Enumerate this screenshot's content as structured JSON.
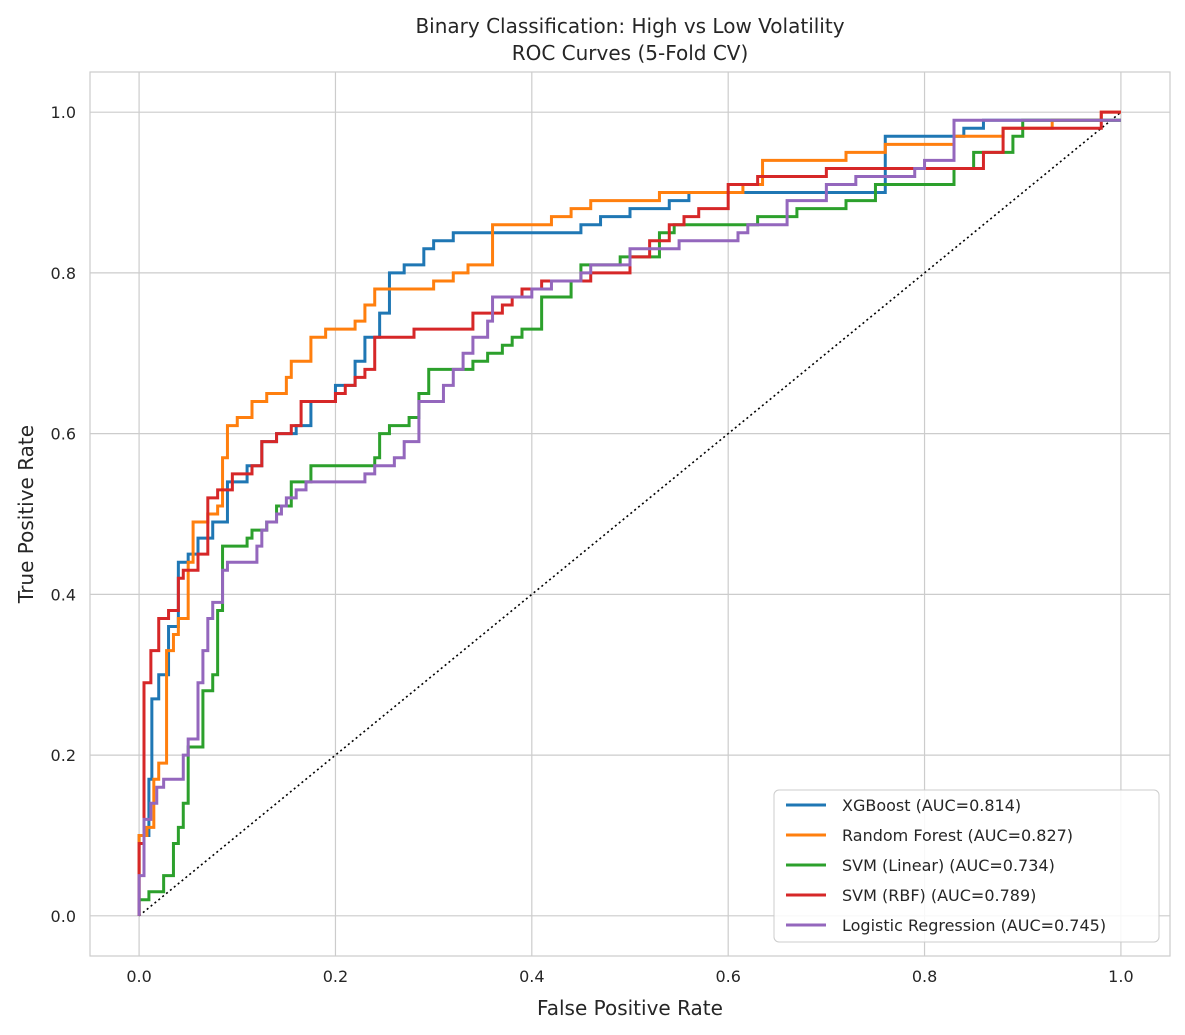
{
  "chart_data": {
    "type": "line",
    "title": "Binary Classification: High vs Low Volatility",
    "subtitle": "ROC Curves (5-Fold CV)",
    "xlabel": "False Positive Rate",
    "ylabel": "True Positive Rate",
    "xlim": [
      -0.05,
      1.05
    ],
    "ylim": [
      -0.05,
      1.05
    ],
    "xticks": [
      "0.0",
      "0.2",
      "0.4",
      "0.6",
      "0.8",
      "1.0"
    ],
    "yticks": [
      "0.0",
      "0.2",
      "0.4",
      "0.6",
      "0.8",
      "1.0"
    ],
    "grid": true,
    "legend_position": "lower-right",
    "diagonal": {
      "x": [
        0,
        1
      ],
      "y": [
        0,
        1
      ],
      "color": "#000000",
      "style": "dotted"
    },
    "series": [
      {
        "name": "XGBoost (AUC=0.814)",
        "color": "#1f77b4",
        "x": [
          0,
          0,
          0.01,
          0.01,
          0.013,
          0.013,
          0.02,
          0.02,
          0.03,
          0.03,
          0.04,
          0.04,
          0.05,
          0.05,
          0.06,
          0.06,
          0.075,
          0.075,
          0.09,
          0.09,
          0.11,
          0.11,
          0.125,
          0.125,
          0.14,
          0.14,
          0.16,
          0.16,
          0.175,
          0.175,
          0.2,
          0.2,
          0.22,
          0.22,
          0.23,
          0.23,
          0.245,
          0.245,
          0.255,
          0.255,
          0.27,
          0.27,
          0.29,
          0.29,
          0.3,
          0.3,
          0.32,
          0.32,
          0.45,
          0.45,
          0.47,
          0.47,
          0.5,
          0.5,
          0.54,
          0.54,
          0.56,
          0.56,
          0.64,
          0.64,
          0.7,
          0.7,
          0.76,
          0.76,
          0.84,
          0.84,
          0.86,
          0.86,
          1.0
        ],
        "y": [
          0,
          0.1,
          0.1,
          0.17,
          0.17,
          0.27,
          0.27,
          0.3,
          0.3,
          0.36,
          0.36,
          0.44,
          0.44,
          0.45,
          0.45,
          0.47,
          0.47,
          0.49,
          0.49,
          0.54,
          0.54,
          0.56,
          0.56,
          0.59,
          0.59,
          0.6,
          0.6,
          0.61,
          0.61,
          0.64,
          0.64,
          0.66,
          0.66,
          0.69,
          0.69,
          0.72,
          0.72,
          0.75,
          0.75,
          0.8,
          0.8,
          0.81,
          0.81,
          0.83,
          0.83,
          0.84,
          0.84,
          0.85,
          0.85,
          0.86,
          0.86,
          0.87,
          0.87,
          0.88,
          0.88,
          0.89,
          0.89,
          0.9,
          0.9,
          0.9,
          0.9,
          0.9,
          0.9,
          0.97,
          0.97,
          0.98,
          0.98,
          0.99,
          0.99
        ]
      },
      {
        "name": "Random Forest (AUC=0.827)",
        "color": "#ff7f0e",
        "x": [
          0,
          0,
          0.008,
          0.008,
          0.015,
          0.015,
          0.02,
          0.02,
          0.028,
          0.028,
          0.035,
          0.035,
          0.04,
          0.04,
          0.05,
          0.05,
          0.055,
          0.055,
          0.07,
          0.07,
          0.08,
          0.08,
          0.085,
          0.085,
          0.09,
          0.09,
          0.1,
          0.1,
          0.115,
          0.115,
          0.13,
          0.13,
          0.15,
          0.15,
          0.155,
          0.155,
          0.175,
          0.175,
          0.19,
          0.19,
          0.22,
          0.22,
          0.23,
          0.23,
          0.24,
          0.24,
          0.265,
          0.265,
          0.3,
          0.3,
          0.32,
          0.32,
          0.335,
          0.335,
          0.36,
          0.36,
          0.42,
          0.42,
          0.44,
          0.44,
          0.46,
          0.46,
          0.53,
          0.53,
          0.615,
          0.615,
          0.635,
          0.635,
          0.72,
          0.72,
          0.76,
          0.76,
          0.83,
          0.83,
          0.88,
          0.88,
          0.93,
          0.93,
          0.98,
          0.98,
          1.0
        ],
        "y": [
          0,
          0.1,
          0.1,
          0.11,
          0.11,
          0.17,
          0.17,
          0.19,
          0.19,
          0.33,
          0.33,
          0.35,
          0.35,
          0.37,
          0.37,
          0.44,
          0.44,
          0.49,
          0.49,
          0.5,
          0.5,
          0.51,
          0.51,
          0.57,
          0.57,
          0.61,
          0.61,
          0.62,
          0.62,
          0.64,
          0.64,
          0.65,
          0.65,
          0.67,
          0.67,
          0.69,
          0.69,
          0.72,
          0.72,
          0.73,
          0.73,
          0.74,
          0.74,
          0.76,
          0.76,
          0.78,
          0.78,
          0.78,
          0.78,
          0.79,
          0.79,
          0.8,
          0.8,
          0.81,
          0.81,
          0.86,
          0.86,
          0.87,
          0.87,
          0.88,
          0.88,
          0.89,
          0.89,
          0.9,
          0.9,
          0.91,
          0.91,
          0.94,
          0.94,
          0.95,
          0.95,
          0.96,
          0.96,
          0.97,
          0.97,
          0.98,
          0.98,
          0.99,
          0.99,
          1.0,
          1.0
        ]
      },
      {
        "name": "SVM (Linear) (AUC=0.734)",
        "color": "#2ca02c",
        "x": [
          0,
          0,
          0.01,
          0.01,
          0.025,
          0.025,
          0.035,
          0.035,
          0.04,
          0.04,
          0.045,
          0.045,
          0.05,
          0.05,
          0.065,
          0.065,
          0.075,
          0.075,
          0.08,
          0.08,
          0.085,
          0.085,
          0.11,
          0.11,
          0.115,
          0.115,
          0.13,
          0.13,
          0.14,
          0.14,
          0.155,
          0.155,
          0.175,
          0.175,
          0.24,
          0.24,
          0.245,
          0.245,
          0.255,
          0.255,
          0.275,
          0.275,
          0.285,
          0.285,
          0.295,
          0.295,
          0.34,
          0.34,
          0.355,
          0.355,
          0.37,
          0.37,
          0.38,
          0.38,
          0.39,
          0.39,
          0.41,
          0.41,
          0.44,
          0.44,
          0.45,
          0.45,
          0.49,
          0.49,
          0.53,
          0.53,
          0.545,
          0.545,
          0.63,
          0.63,
          0.67,
          0.67,
          0.72,
          0.72,
          0.75,
          0.75,
          0.83,
          0.83,
          0.85,
          0.85,
          0.89,
          0.89,
          0.9,
          0.9,
          1.0
        ],
        "y": [
          0,
          0.02,
          0.02,
          0.03,
          0.03,
          0.05,
          0.05,
          0.09,
          0.09,
          0.11,
          0.11,
          0.14,
          0.14,
          0.21,
          0.21,
          0.28,
          0.28,
          0.3,
          0.3,
          0.38,
          0.38,
          0.46,
          0.46,
          0.47,
          0.47,
          0.48,
          0.48,
          0.49,
          0.49,
          0.51,
          0.51,
          0.54,
          0.54,
          0.56,
          0.56,
          0.57,
          0.57,
          0.6,
          0.6,
          0.61,
          0.61,
          0.62,
          0.62,
          0.65,
          0.65,
          0.68,
          0.68,
          0.69,
          0.69,
          0.7,
          0.7,
          0.71,
          0.71,
          0.72,
          0.72,
          0.73,
          0.73,
          0.77,
          0.77,
          0.79,
          0.79,
          0.81,
          0.81,
          0.82,
          0.82,
          0.85,
          0.85,
          0.86,
          0.86,
          0.87,
          0.87,
          0.88,
          0.88,
          0.89,
          0.89,
          0.91,
          0.91,
          0.93,
          0.93,
          0.95,
          0.95,
          0.97,
          0.97,
          0.99,
          0.99
        ]
      },
      {
        "name": "SVM (RBF) (AUC=0.789)",
        "color": "#d62728",
        "x": [
          0,
          0,
          0.005,
          0.005,
          0.012,
          0.012,
          0.02,
          0.02,
          0.03,
          0.03,
          0.04,
          0.04,
          0.045,
          0.045,
          0.06,
          0.06,
          0.07,
          0.07,
          0.08,
          0.08,
          0.095,
          0.095,
          0.115,
          0.115,
          0.125,
          0.125,
          0.14,
          0.14,
          0.155,
          0.155,
          0.165,
          0.165,
          0.2,
          0.2,
          0.21,
          0.21,
          0.22,
          0.22,
          0.23,
          0.23,
          0.24,
          0.24,
          0.28,
          0.28,
          0.34,
          0.34,
          0.37,
          0.37,
          0.38,
          0.38,
          0.39,
          0.39,
          0.41,
          0.41,
          0.46,
          0.46,
          0.5,
          0.5,
          0.52,
          0.52,
          0.54,
          0.54,
          0.555,
          0.555,
          0.57,
          0.57,
          0.6,
          0.6,
          0.63,
          0.63,
          0.7,
          0.7,
          0.81,
          0.81,
          0.86,
          0.86,
          0.88,
          0.88,
          0.98,
          0.98,
          1.0
        ],
        "y": [
          0,
          0.09,
          0.09,
          0.29,
          0.29,
          0.33,
          0.33,
          0.37,
          0.37,
          0.38,
          0.38,
          0.42,
          0.42,
          0.43,
          0.43,
          0.45,
          0.45,
          0.52,
          0.52,
          0.53,
          0.53,
          0.55,
          0.55,
          0.56,
          0.56,
          0.59,
          0.59,
          0.6,
          0.6,
          0.61,
          0.61,
          0.64,
          0.64,
          0.65,
          0.65,
          0.66,
          0.66,
          0.67,
          0.67,
          0.68,
          0.68,
          0.72,
          0.72,
          0.73,
          0.73,
          0.75,
          0.75,
          0.76,
          0.76,
          0.77,
          0.77,
          0.78,
          0.78,
          0.79,
          0.79,
          0.8,
          0.8,
          0.82,
          0.82,
          0.84,
          0.84,
          0.86,
          0.86,
          0.87,
          0.87,
          0.88,
          0.88,
          0.91,
          0.91,
          0.92,
          0.92,
          0.93,
          0.93,
          0.93,
          0.93,
          0.95,
          0.95,
          0.98,
          0.98,
          1.0,
          1.0
        ]
      },
      {
        "name": "Logistic Regression (AUC=0.745)",
        "color": "#9467bd",
        "x": [
          0,
          0,
          0.005,
          0.005,
          0.012,
          0.012,
          0.018,
          0.018,
          0.025,
          0.025,
          0.045,
          0.045,
          0.05,
          0.05,
          0.06,
          0.06,
          0.065,
          0.065,
          0.07,
          0.07,
          0.075,
          0.075,
          0.085,
          0.085,
          0.09,
          0.09,
          0.12,
          0.12,
          0.125,
          0.125,
          0.13,
          0.13,
          0.14,
          0.14,
          0.145,
          0.145,
          0.15,
          0.15,
          0.16,
          0.16,
          0.17,
          0.17,
          0.23,
          0.23,
          0.24,
          0.24,
          0.26,
          0.26,
          0.27,
          0.27,
          0.285,
          0.285,
          0.31,
          0.31,
          0.32,
          0.32,
          0.33,
          0.33,
          0.34,
          0.34,
          0.355,
          0.355,
          0.36,
          0.36,
          0.4,
          0.4,
          0.42,
          0.42,
          0.45,
          0.45,
          0.46,
          0.46,
          0.5,
          0.5,
          0.55,
          0.55,
          0.61,
          0.61,
          0.62,
          0.62,
          0.66,
          0.66,
          0.7,
          0.7,
          0.73,
          0.73,
          0.79,
          0.79,
          0.8,
          0.8,
          0.83,
          0.83,
          1.0
        ],
        "y": [
          0,
          0.05,
          0.05,
          0.12,
          0.12,
          0.14,
          0.14,
          0.16,
          0.16,
          0.17,
          0.17,
          0.2,
          0.2,
          0.22,
          0.22,
          0.29,
          0.29,
          0.33,
          0.33,
          0.37,
          0.37,
          0.39,
          0.39,
          0.43,
          0.43,
          0.44,
          0.44,
          0.46,
          0.46,
          0.48,
          0.48,
          0.49,
          0.49,
          0.5,
          0.5,
          0.51,
          0.51,
          0.52,
          0.52,
          0.53,
          0.53,
          0.54,
          0.54,
          0.55,
          0.55,
          0.56,
          0.56,
          0.57,
          0.57,
          0.59,
          0.59,
          0.64,
          0.64,
          0.66,
          0.66,
          0.68,
          0.68,
          0.7,
          0.7,
          0.72,
          0.72,
          0.74,
          0.74,
          0.77,
          0.77,
          0.78,
          0.78,
          0.79,
          0.79,
          0.8,
          0.8,
          0.81,
          0.81,
          0.83,
          0.83,
          0.84,
          0.84,
          0.85,
          0.85,
          0.86,
          0.86,
          0.89,
          0.89,
          0.91,
          0.91,
          0.92,
          0.92,
          0.93,
          0.93,
          0.94,
          0.94,
          0.99,
          0.99
        ]
      }
    ]
  }
}
